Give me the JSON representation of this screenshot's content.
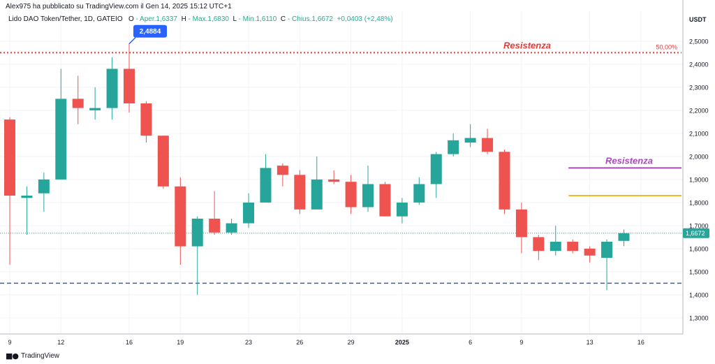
{
  "header": {
    "publisher": "Alex975 ha pubblicato su TradingView.com il Gen 14, 2025 15:12 UTC+1",
    "symbol": "Lido DAO Token/Tether, 1D, GATEIO",
    "o_label": "O",
    "o_value": "- Aper.1,6337",
    "h_label": "H",
    "h_value": "- Max.1,6830",
    "l_label": "L",
    "l_value": "- Min.1,6110",
    "c_label": "C",
    "c_value": "- Chius.1,6672",
    "change": "+0,0403 (+2,48%)"
  },
  "footer": {
    "brand": "TradingView"
  },
  "colors": {
    "up": "#26a69a",
    "down": "#ef5350",
    "marker": "#2962ff",
    "support": "#3b5bab",
    "resistance_top": "#e53935",
    "resistance_mid": "#ab47bc",
    "level_orange": "#f5b829",
    "price_badge": "#26a69a"
  },
  "chart_data": {
    "type": "candlestick",
    "currency": "USDT",
    "y_range": [
      1.23,
      2.63
    ],
    "y_ticks": [
      {
        "value": 1.3,
        "label": "1,3000"
      },
      {
        "value": 1.4,
        "label": "1,4000"
      },
      {
        "value": 1.5,
        "label": "1,5000"
      },
      {
        "value": 1.6,
        "label": "1,6000"
      },
      {
        "value": 1.7,
        "label": "1,7000"
      },
      {
        "value": 1.8,
        "label": "1,8000"
      },
      {
        "value": 1.9,
        "label": "1,9000"
      },
      {
        "value": 2.0,
        "label": "2,0000"
      },
      {
        "value": 2.1,
        "label": "2,1000"
      },
      {
        "value": 2.2,
        "label": "2,2000"
      },
      {
        "value": 2.3,
        "label": "2,3000"
      },
      {
        "value": 2.4,
        "label": "2,4000"
      },
      {
        "value": 2.5,
        "label": "2,5000"
      }
    ],
    "x_ticks": [
      {
        "index": 0,
        "label": "9"
      },
      {
        "index": 3,
        "label": "12"
      },
      {
        "index": 7,
        "label": "16"
      },
      {
        "index": 10,
        "label": "19"
      },
      {
        "index": 14,
        "label": "23"
      },
      {
        "index": 17,
        "label": "26"
      },
      {
        "index": 20,
        "label": "29"
      },
      {
        "index": 23,
        "label": "2025"
      },
      {
        "index": 27,
        "label": "6"
      },
      {
        "index": 30,
        "label": "9"
      },
      {
        "index": 34,
        "label": "13"
      },
      {
        "index": 37,
        "label": "16"
      }
    ],
    "candles": [
      {
        "o": 2.16,
        "h": 2.17,
        "l": 1.53,
        "c": 1.83
      },
      {
        "o": 1.82,
        "h": 1.87,
        "l": 1.66,
        "c": 1.83
      },
      {
        "o": 1.84,
        "h": 1.93,
        "l": 1.76,
        "c": 1.9
      },
      {
        "o": 1.9,
        "h": 2.38,
        "l": 1.9,
        "c": 2.25
      },
      {
        "o": 2.25,
        "h": 2.35,
        "l": 2.14,
        "c": 2.21
      },
      {
        "o": 2.2,
        "h": 2.3,
        "l": 2.16,
        "c": 2.21
      },
      {
        "o": 2.21,
        "h": 2.43,
        "l": 2.16,
        "c": 2.38
      },
      {
        "o": 2.38,
        "h": 2.49,
        "l": 2.19,
        "c": 2.23
      },
      {
        "o": 2.23,
        "h": 2.24,
        "l": 2.06,
        "c": 2.09
      },
      {
        "o": 2.09,
        "h": 2.09,
        "l": 1.86,
        "c": 1.87
      },
      {
        "o": 1.87,
        "h": 1.91,
        "l": 1.53,
        "c": 1.61
      },
      {
        "o": 1.61,
        "h": 1.74,
        "l": 1.4,
        "c": 1.73
      },
      {
        "o": 1.73,
        "h": 1.85,
        "l": 1.66,
        "c": 1.67
      },
      {
        "o": 1.67,
        "h": 1.73,
        "l": 1.66,
        "c": 1.71
      },
      {
        "o": 1.71,
        "h": 1.84,
        "l": 1.69,
        "c": 1.8
      },
      {
        "o": 1.8,
        "h": 2.01,
        "l": 1.8,
        "c": 1.95
      },
      {
        "o": 1.96,
        "h": 1.97,
        "l": 1.87,
        "c": 1.92
      },
      {
        "o": 1.92,
        "h": 1.94,
        "l": 1.75,
        "c": 1.77
      },
      {
        "o": 1.77,
        "h": 2.0,
        "l": 1.77,
        "c": 1.9
      },
      {
        "o": 1.9,
        "h": 1.94,
        "l": 1.88,
        "c": 1.89
      },
      {
        "o": 1.89,
        "h": 1.92,
        "l": 1.75,
        "c": 1.78
      },
      {
        "o": 1.78,
        "h": 1.96,
        "l": 1.76,
        "c": 1.88
      },
      {
        "o": 1.88,
        "h": 1.89,
        "l": 1.74,
        "c": 1.74
      },
      {
        "o": 1.74,
        "h": 1.82,
        "l": 1.71,
        "c": 1.8
      },
      {
        "o": 1.8,
        "h": 1.91,
        "l": 1.79,
        "c": 1.88
      },
      {
        "o": 1.88,
        "h": 2.02,
        "l": 1.82,
        "c": 2.01
      },
      {
        "o": 2.01,
        "h": 2.1,
        "l": 2.0,
        "c": 2.07
      },
      {
        "o": 2.06,
        "h": 2.14,
        "l": 2.04,
        "c": 2.08
      },
      {
        "o": 2.08,
        "h": 2.12,
        "l": 2.01,
        "c": 2.02
      },
      {
        "o": 2.02,
        "h": 2.03,
        "l": 1.75,
        "c": 1.77
      },
      {
        "o": 1.77,
        "h": 1.8,
        "l": 1.58,
        "c": 1.65
      },
      {
        "o": 1.65,
        "h": 1.66,
        "l": 1.55,
        "c": 1.59
      },
      {
        "o": 1.59,
        "h": 1.7,
        "l": 1.57,
        "c": 1.63
      },
      {
        "o": 1.63,
        "h": 1.64,
        "l": 1.58,
        "c": 1.59
      },
      {
        "o": 1.6,
        "h": 1.61,
        "l": 1.54,
        "c": 1.57
      },
      {
        "o": 1.56,
        "h": 1.64,
        "l": 1.42,
        "c": 1.63
      },
      {
        "o": 1.6337,
        "h": 1.683,
        "l": 1.611,
        "c": 1.6672
      }
    ],
    "lines": [
      {
        "name": "resistance-top",
        "value": 2.45,
        "style": "dotted",
        "label": "Resistenza",
        "pct_label": "50,00%"
      },
      {
        "name": "resistance-mid",
        "value": 1.95,
        "style": "solid",
        "label": "Resistenza",
        "start_index": 33
      },
      {
        "name": "level-orange",
        "value": 1.83,
        "style": "solid",
        "start_index": 33
      },
      {
        "name": "support",
        "value": 1.45,
        "style": "dashed"
      }
    ],
    "high_marker": {
      "index": 7,
      "value": 2.4884,
      "label": "2,4884"
    },
    "last_price": {
      "value": 1.6672,
      "label": "1,6672"
    }
  }
}
